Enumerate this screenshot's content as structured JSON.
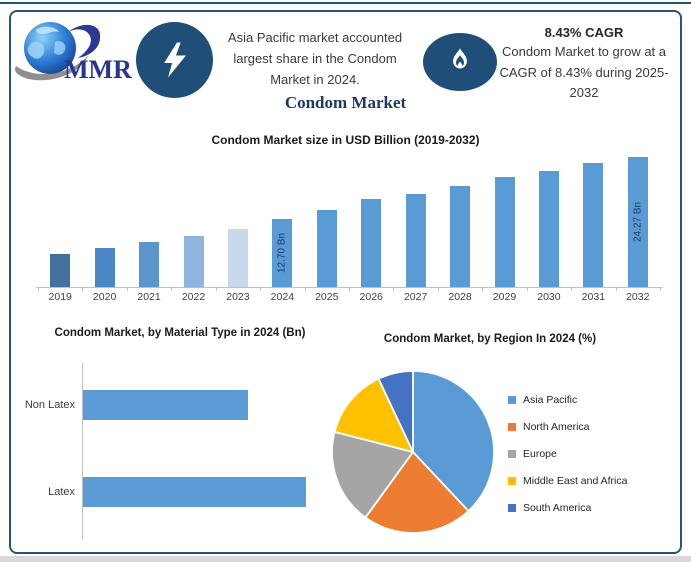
{
  "colors": {
    "frame_border": "#24586e",
    "icon_badge_bg": "#1f4e79",
    "title_navy": "#1f3864",
    "logo_text_blue": "#283593",
    "bar_blue": "#5b9bd5",
    "axis_gray": "#c0c0c0"
  },
  "logo": {
    "brand": "MMR"
  },
  "header": {
    "highlight_text": "Asia Pacific market accounted largest share in the Condom Market in 2024.",
    "cagr_headline": "8.43% CAGR",
    "cagr_text": "Condom Market to grow at a CAGR of 8.43% during 2025-2032"
  },
  "title": "Condom Market",
  "chart_data": [
    {
      "type": "bar",
      "title": "Condom Market size in USD Billion (2019-2032)",
      "xlabel": "",
      "ylabel": "",
      "categories": [
        "2019",
        "2020",
        "2021",
        "2022",
        "2023",
        "2024",
        "2025",
        "2026",
        "2027",
        "2028",
        "2029",
        "2030",
        "2031",
        "2032"
      ],
      "values": [
        6.2,
        7.2,
        8.4,
        9.5,
        10.9,
        12.7,
        14.4,
        16.5,
        17.4,
        18.9,
        20.5,
        21.6,
        23.2,
        24.27
      ],
      "bar_labels": {
        "2024": "12.70 Bn",
        "2032": "24.27 Bn"
      },
      "bar_colors": [
        "#41719c",
        "#4d86c4",
        "#5b95cb",
        "#8fb5de",
        "#c9d8ec",
        "#5b9bd5",
        "#5b9bd5",
        "#5b9bd5",
        "#5b9bd5",
        "#5b9bd5",
        "#5b9bd5",
        "#5b9bd5",
        "#5b9bd5",
        "#5b9bd5"
      ],
      "ylim": [
        0,
        26
      ],
      "grid": false,
      "legend": false
    },
    {
      "type": "bar",
      "orientation": "horizontal",
      "title": "Condom Market, by Material Type in 2024 (Bn)",
      "categories": [
        "Non Latex",
        "Latex"
      ],
      "values": [
        5.4,
        7.3
      ],
      "bar_color": "#5b9bd5",
      "grid": false,
      "legend": false
    },
    {
      "type": "pie",
      "title": "Condom Market, by Region In 2024 (%)",
      "labels": [
        "Asia Pacific",
        "North America",
        "Europe",
        "Middle East and Africa",
        "South America"
      ],
      "values": [
        38,
        22,
        19,
        14,
        7
      ],
      "colors": [
        "#5b9bd5",
        "#ed7d31",
        "#a5a5a5",
        "#ffc000",
        "#4472c4"
      ],
      "legend_position": "right",
      "start_angle_deg": 0,
      "slice_border_color": "#ffffff"
    }
  ]
}
